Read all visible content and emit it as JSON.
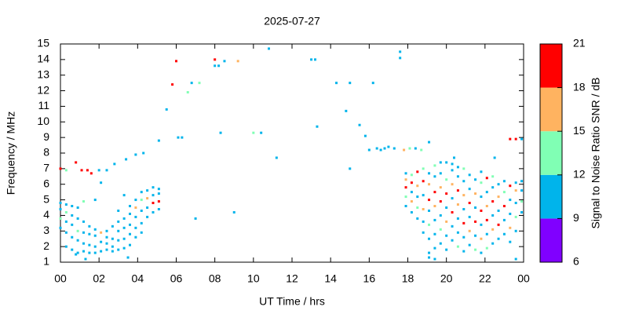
{
  "chart_data": {
    "type": "scatter",
    "title": "2025-07-27",
    "xlabel": "UT Time / hrs",
    "ylabel": "Frequency / MHz",
    "xlim": [
      0,
      24
    ],
    "ylim": [
      1,
      15
    ],
    "xticks": [
      {
        "value": 0,
        "label": "00"
      },
      {
        "value": 2,
        "label": "02"
      },
      {
        "value": 4,
        "label": "04"
      },
      {
        "value": 6,
        "label": "06"
      },
      {
        "value": 8,
        "label": "08"
      },
      10,
      12,
      14,
      16,
      18,
      20,
      22,
      {
        "value": 24,
        "label": "00"
      }
    ],
    "yticks": [
      1,
      2,
      3,
      4,
      5,
      6,
      7,
      8,
      9,
      10,
      11,
      12,
      13,
      14,
      15
    ],
    "colorbar": {
      "label": "Signal to Noise Ratio SNR / dB",
      "lim": [
        6,
        21
      ],
      "ticks": [
        6,
        9,
        12,
        15,
        18,
        21
      ],
      "colors": [
        "#8000ff",
        "#00b4eb",
        "#80ffb4",
        "#ffb360",
        "#ff0000"
      ]
    },
    "points": [
      [
        0,
        7,
        19
      ],
      [
        0.3,
        6.9,
        13
      ],
      [
        0.8,
        7.4,
        19
      ],
      [
        1.1,
        6.9,
        19
      ],
      [
        1.4,
        6.9,
        19
      ],
      [
        1.6,
        6.7,
        19
      ],
      [
        2.0,
        6.9,
        10
      ],
      [
        2.4,
        6.9,
        10
      ],
      [
        2.8,
        7.3,
        10
      ],
      [
        3.4,
        7.6,
        10
      ],
      [
        3.9,
        7.9,
        10
      ],
      [
        4.3,
        8,
        10
      ],
      [
        5.1,
        8.8,
        10
      ],
      [
        5.5,
        10.8,
        10
      ],
      [
        5.8,
        12.4,
        19
      ],
      [
        6.0,
        13.9,
        19
      ],
      [
        6.1,
        9,
        10
      ],
      [
        6.3,
        9,
        10
      ],
      [
        6.6,
        11.9,
        13
      ],
      [
        6.8,
        12.5,
        10
      ],
      [
        7.2,
        12.5,
        13
      ],
      [
        7.0,
        3.8,
        10
      ],
      [
        8.0,
        14,
        19
      ],
      [
        8.0,
        13.6,
        10
      ],
      [
        8.2,
        13.6,
        10
      ],
      [
        8.3,
        9.3,
        10
      ],
      [
        8.5,
        13.9,
        10
      ],
      [
        9.0,
        4.2,
        10
      ],
      [
        9.2,
        13.9,
        16
      ],
      [
        10.0,
        9.3,
        13
      ],
      [
        10.4,
        9.3,
        10
      ],
      [
        10.8,
        14.7,
        10
      ],
      [
        11.2,
        7.7,
        10
      ],
      [
        13.0,
        14,
        10
      ],
      [
        13.2,
        14,
        10
      ],
      [
        13.3,
        9.7,
        10
      ],
      [
        14.3,
        12.5,
        10
      ],
      [
        14.8,
        10.7,
        10
      ],
      [
        15.0,
        7.0,
        10
      ],
      [
        15.0,
        12.5,
        10
      ],
      [
        15.5,
        9.8,
        10
      ],
      [
        15.8,
        9.1,
        10
      ],
      [
        16.0,
        8.2,
        10
      ],
      [
        16.2,
        12.5,
        10
      ],
      [
        16.4,
        8.3,
        10
      ],
      [
        16.6,
        8.2,
        10
      ],
      [
        16.8,
        8.3,
        10
      ],
      [
        17.0,
        8.4,
        10
      ],
      [
        17.3,
        8.3,
        10
      ],
      [
        17.6,
        14.5,
        10
      ],
      [
        17.6,
        14.1,
        10
      ],
      [
        17.8,
        8.2,
        16
      ],
      [
        18.1,
        8.3,
        13
      ],
      [
        18.4,
        8.3,
        10
      ],
      [
        18.7,
        8.2,
        13
      ],
      [
        19.1,
        8.7,
        10
      ],
      [
        20.4,
        7.7,
        10
      ],
      [
        22.5,
        7.7,
        10
      ],
      [
        23.3,
        8.9,
        19
      ],
      [
        23.6,
        8.9,
        19
      ],
      [
        23.9,
        8.9,
        10
      ],
      [
        19.1,
        1.3,
        10
      ],
      [
        19.4,
        1.2,
        10
      ],
      [
        23.6,
        1.2,
        10
      ],
      [
        3.5,
        1.3,
        10
      ],
      [
        1.3,
        1.2,
        10
      ],
      [
        0.8,
        1.5,
        10
      ],
      [
        0.0,
        3.2,
        10
      ],
      [
        0.0,
        3.8,
        13
      ],
      [
        0.0,
        4.4,
        10
      ],
      [
        0.0,
        4.8,
        10
      ],
      [
        0.3,
        2.0,
        10
      ],
      [
        0.3,
        2.9,
        10
      ],
      [
        0.3,
        3.6,
        10
      ],
      [
        0.3,
        4.2,
        13
      ],
      [
        0.3,
        4.7,
        10
      ],
      [
        0.6,
        1.8,
        10
      ],
      [
        0.6,
        2.6,
        10
      ],
      [
        0.6,
        3.4,
        10
      ],
      [
        0.6,
        4.0,
        10
      ],
      [
        0.6,
        4.6,
        10
      ],
      [
        0.9,
        1.6,
        10
      ],
      [
        0.9,
        2.4,
        10
      ],
      [
        0.9,
        3.0,
        13
      ],
      [
        0.9,
        3.8,
        10
      ],
      [
        0.9,
        4.5,
        10
      ],
      [
        1.2,
        1.7,
        10
      ],
      [
        1.2,
        2.2,
        10
      ],
      [
        1.2,
        2.9,
        10
      ],
      [
        1.2,
        3.6,
        10
      ],
      [
        1.2,
        4.9,
        13
      ],
      [
        1.5,
        1.6,
        10
      ],
      [
        1.5,
        2.1,
        10
      ],
      [
        1.5,
        2.8,
        10
      ],
      [
        1.5,
        3.3,
        10
      ],
      [
        1.8,
        1.6,
        10
      ],
      [
        1.8,
        2.0,
        10
      ],
      [
        1.8,
        2.7,
        10
      ],
      [
        1.8,
        3.1,
        10
      ],
      [
        1.8,
        5.0,
        10
      ],
      [
        2.1,
        1.7,
        10
      ],
      [
        2.1,
        2.3,
        10
      ],
      [
        2.1,
        2.9,
        16
      ],
      [
        2.1,
        6.1,
        10
      ],
      [
        2.4,
        1.8,
        10
      ],
      [
        2.4,
        2.2,
        10
      ],
      [
        2.4,
        2.6,
        10
      ],
      [
        2.4,
        3.0,
        10
      ],
      [
        2.7,
        1.7,
        10
      ],
      [
        2.7,
        2.0,
        10
      ],
      [
        2.7,
        2.5,
        10
      ],
      [
        2.7,
        3.3,
        10
      ],
      [
        3.0,
        1.8,
        10
      ],
      [
        3.0,
        2.4,
        10
      ],
      [
        3.0,
        3.0,
        10
      ],
      [
        3.0,
        3.6,
        10
      ],
      [
        3.0,
        4.3,
        10
      ],
      [
        3.3,
        1.9,
        10
      ],
      [
        3.3,
        2.5,
        10
      ],
      [
        3.3,
        3.2,
        10
      ],
      [
        3.3,
        3.8,
        10
      ],
      [
        3.3,
        5.3,
        10
      ],
      [
        3.6,
        2.1,
        10
      ],
      [
        3.6,
        2.8,
        10
      ],
      [
        3.6,
        3.4,
        10
      ],
      [
        3.6,
        4.1,
        10
      ],
      [
        3.6,
        4.6,
        10
      ],
      [
        3.9,
        2.6,
        10
      ],
      [
        3.9,
        3.2,
        10
      ],
      [
        3.9,
        3.9,
        10
      ],
      [
        3.9,
        4.5,
        16
      ],
      [
        3.9,
        5.0,
        10
      ],
      [
        4.2,
        2.9,
        10
      ],
      [
        4.2,
        3.5,
        10
      ],
      [
        4.2,
        4.3,
        10
      ],
      [
        4.2,
        5.0,
        13
      ],
      [
        4.2,
        5.5,
        10
      ],
      [
        4.5,
        3.9,
        10
      ],
      [
        4.5,
        4.5,
        10
      ],
      [
        4.5,
        5.1,
        16
      ],
      [
        4.5,
        5.6,
        10
      ],
      [
        4.8,
        4.2,
        10
      ],
      [
        4.8,
        4.8,
        19
      ],
      [
        4.8,
        5.3,
        10
      ],
      [
        4.8,
        5.8,
        10
      ],
      [
        5.1,
        4.4,
        10
      ],
      [
        5.1,
        4.9,
        19
      ],
      [
        5.1,
        5.4,
        10
      ],
      [
        5.1,
        5.7,
        10
      ],
      [
        17.9,
        4.6,
        10
      ],
      [
        17.9,
        5.2,
        13
      ],
      [
        17.9,
        5.8,
        19
      ],
      [
        17.9,
        6.3,
        16
      ],
      [
        17.9,
        6.7,
        10
      ],
      [
        18.2,
        4.2,
        10
      ],
      [
        18.2,
        4.9,
        16
      ],
      [
        18.2,
        5.5,
        10
      ],
      [
        18.2,
        6.1,
        19
      ],
      [
        18.2,
        6.6,
        13
      ],
      [
        18.5,
        3.8,
        10
      ],
      [
        18.5,
        4.5,
        13
      ],
      [
        18.5,
        5.2,
        10
      ],
      [
        18.5,
        5.9,
        16
      ],
      [
        18.5,
        6.8,
        19
      ],
      [
        18.8,
        2.9,
        10
      ],
      [
        18.8,
        3.6,
        10
      ],
      [
        18.8,
        4.4,
        16
      ],
      [
        18.8,
        5.3,
        10
      ],
      [
        18.8,
        6.2,
        19
      ],
      [
        18.8,
        7.0,
        13
      ],
      [
        19.1,
        1.6,
        10
      ],
      [
        19.1,
        2.5,
        10
      ],
      [
        19.1,
        3.4,
        13
      ],
      [
        19.1,
        4.3,
        10
      ],
      [
        19.1,
        5.0,
        19
      ],
      [
        19.1,
        6.0,
        16
      ],
      [
        19.1,
        6.7,
        10
      ],
      [
        19.4,
        1.9,
        10
      ],
      [
        19.4,
        2.8,
        10
      ],
      [
        19.4,
        3.7,
        10
      ],
      [
        19.4,
        4.6,
        16
      ],
      [
        19.4,
        5.5,
        19
      ],
      [
        19.4,
        6.5,
        10
      ],
      [
        19.4,
        7.2,
        13
      ],
      [
        19.7,
        2.2,
        10
      ],
      [
        19.7,
        3.1,
        13
      ],
      [
        19.7,
        4.0,
        10
      ],
      [
        19.7,
        4.9,
        19
      ],
      [
        19.7,
        5.8,
        16
      ],
      [
        19.7,
        6.7,
        10
      ],
      [
        19.7,
        7.4,
        10
      ],
      [
        20.0,
        1.8,
        10
      ],
      [
        20.0,
        2.7,
        10
      ],
      [
        20.0,
        3.6,
        16
      ],
      [
        20.0,
        4.5,
        10
      ],
      [
        20.0,
        5.4,
        19
      ],
      [
        20.0,
        6.3,
        13
      ],
      [
        20.0,
        7.4,
        10
      ],
      [
        20.3,
        2.4,
        10
      ],
      [
        20.3,
        3.3,
        10
      ],
      [
        20.3,
        4.2,
        19
      ],
      [
        20.3,
        5.1,
        10
      ],
      [
        20.3,
        6.0,
        16
      ],
      [
        20.3,
        6.9,
        10
      ],
      [
        20.3,
        7.3,
        10
      ],
      [
        20.6,
        2.0,
        13
      ],
      [
        20.6,
        2.9,
        10
      ],
      [
        20.6,
        3.8,
        10
      ],
      [
        20.6,
        4.7,
        16
      ],
      [
        20.6,
        5.6,
        19
      ],
      [
        20.6,
        6.5,
        10
      ],
      [
        20.6,
        7.1,
        10
      ],
      [
        20.9,
        1.7,
        10
      ],
      [
        20.9,
        2.6,
        10
      ],
      [
        20.9,
        3.5,
        19
      ],
      [
        20.9,
        4.4,
        10
      ],
      [
        20.9,
        5.3,
        16
      ],
      [
        20.9,
        6.2,
        10
      ],
      [
        20.9,
        7.0,
        13
      ],
      [
        21.2,
        2.1,
        10
      ],
      [
        21.2,
        3.0,
        16
      ],
      [
        21.2,
        3.9,
        10
      ],
      [
        21.2,
        4.8,
        19
      ],
      [
        21.2,
        5.7,
        10
      ],
      [
        21.2,
        6.6,
        10
      ],
      [
        21.5,
        1.8,
        13
      ],
      [
        21.5,
        2.7,
        10
      ],
      [
        21.5,
        3.6,
        19
      ],
      [
        21.5,
        4.5,
        10
      ],
      [
        21.5,
        5.4,
        16
      ],
      [
        21.5,
        6.3,
        10
      ],
      [
        21.8,
        1.6,
        10
      ],
      [
        21.8,
        2.5,
        16
      ],
      [
        21.8,
        3.4,
        10
      ],
      [
        21.8,
        4.3,
        19
      ],
      [
        21.8,
        5.2,
        10
      ],
      [
        21.8,
        6.1,
        13
      ],
      [
        21.8,
        6.8,
        10
      ],
      [
        22.1,
        1.9,
        13
      ],
      [
        22.1,
        2.8,
        10
      ],
      [
        22.1,
        3.7,
        19
      ],
      [
        22.1,
        4.6,
        16
      ],
      [
        22.1,
        5.5,
        10
      ],
      [
        22.1,
        6.4,
        19
      ],
      [
        22.4,
        2.2,
        10
      ],
      [
        22.4,
        3.1,
        16
      ],
      [
        22.4,
        4.0,
        10
      ],
      [
        22.4,
        4.9,
        19
      ],
      [
        22.4,
        5.8,
        10
      ],
      [
        22.4,
        6.5,
        13
      ],
      [
        22.7,
        2.5,
        10
      ],
      [
        22.7,
        3.4,
        19
      ],
      [
        22.7,
        4.3,
        10
      ],
      [
        22.7,
        5.2,
        16
      ],
      [
        22.7,
        6.0,
        10
      ],
      [
        23.0,
        2.8,
        10
      ],
      [
        23.0,
        3.7,
        10
      ],
      [
        23.0,
        4.6,
        19
      ],
      [
        23.0,
        5.5,
        13
      ],
      [
        23.0,
        6.2,
        10
      ],
      [
        23.3,
        2.3,
        10
      ],
      [
        23.3,
        3.2,
        16
      ],
      [
        23.3,
        4.1,
        10
      ],
      [
        23.3,
        5.0,
        10
      ],
      [
        23.3,
        5.9,
        19
      ],
      [
        23.6,
        3.0,
        10
      ],
      [
        23.6,
        3.9,
        13
      ],
      [
        23.6,
        4.8,
        10
      ],
      [
        23.6,
        5.6,
        16
      ],
      [
        23.6,
        6.1,
        10
      ],
      [
        23.9,
        4.2,
        10
      ],
      [
        23.9,
        4.9,
        13
      ],
      [
        23.9,
        5.6,
        10
      ],
      [
        23.9,
        6.2,
        10
      ]
    ]
  }
}
